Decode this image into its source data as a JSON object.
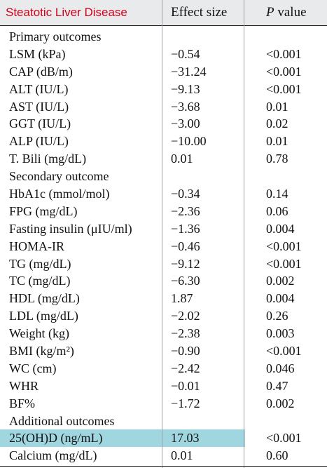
{
  "header": {
    "col1": "Steatotic Liver Disease",
    "col2": "Effect size",
    "col3_italic": "P",
    "col3_rest": " value"
  },
  "rows": [
    {
      "label": "Primary outcomes",
      "effect": "",
      "p": ""
    },
    {
      "label": "LSM (kPa)",
      "effect": "−0.54",
      "p": "<0.001"
    },
    {
      "label": "CAP (dB/m)",
      "effect": "−31.24",
      "p": "<0.001"
    },
    {
      "label": "ALT (IU/L)",
      "effect": "−9.13",
      "p": "<0.001"
    },
    {
      "label": "AST (IU/L)",
      "effect": "−3.68",
      "p": "0.01"
    },
    {
      "label": "GGT (IU/L)",
      "effect": "−3.00",
      "p": "0.02"
    },
    {
      "label": "ALP (IU/L)",
      "effect": "−10.00",
      "p": "0.01"
    },
    {
      "label": "T. Bili (mg/dL)",
      "effect": "0.01",
      "p": "0.78"
    },
    {
      "label": "Secondary outcome",
      "effect": "",
      "p": ""
    },
    {
      "label": "HbA1c (mmol/mol)",
      "effect": "−0.34",
      "p": "0.14"
    },
    {
      "label": "FPG (mg/dL)",
      "effect": "−2.36",
      "p": "0.06"
    },
    {
      "label": "Fasting insulin (μIU/ml)",
      "effect": "−1.36",
      "p": "0.004"
    },
    {
      "label": "HOMA-IR",
      "effect": "−0.46",
      "p": "<0.001"
    },
    {
      "label": "TG (mg/dL)",
      "effect": "−9.12",
      "p": "<0.001"
    },
    {
      "label": "TC (mg/dL)",
      "effect": "−6.30",
      "p": "0.002"
    },
    {
      "label": "HDL (mg/dL)",
      "effect": "1.87",
      "p": "0.004"
    },
    {
      "label": "LDL (mg/dL)",
      "effect": "−2.02",
      "p": "0.26"
    },
    {
      "label": "Weight (kg)",
      "effect": "−2.38",
      "p": "0.003"
    },
    {
      "label": "BMI (kg/m²)",
      "effect": "−0.90",
      "p": "<0.001"
    },
    {
      "label": "WC (cm)",
      "effect": "−2.42",
      "p": "0.046"
    },
    {
      "label": "WHR",
      "effect": "−0.01",
      "p": "0.47"
    },
    {
      "label": "BF%",
      "effect": "−1.72",
      "p": "0.002"
    },
    {
      "label": "Additional outcomes",
      "effect": "",
      "p": ""
    },
    {
      "label": "25(OH)D (ng/mL)",
      "effect": "17.03",
      "p": "<0.001"
    },
    {
      "label": "Calcium (mg/dL)",
      "effect": "0.01",
      "p": "0.60"
    }
  ],
  "highlight_color": "#9fd6df",
  "header_title_color": "#d0021b"
}
